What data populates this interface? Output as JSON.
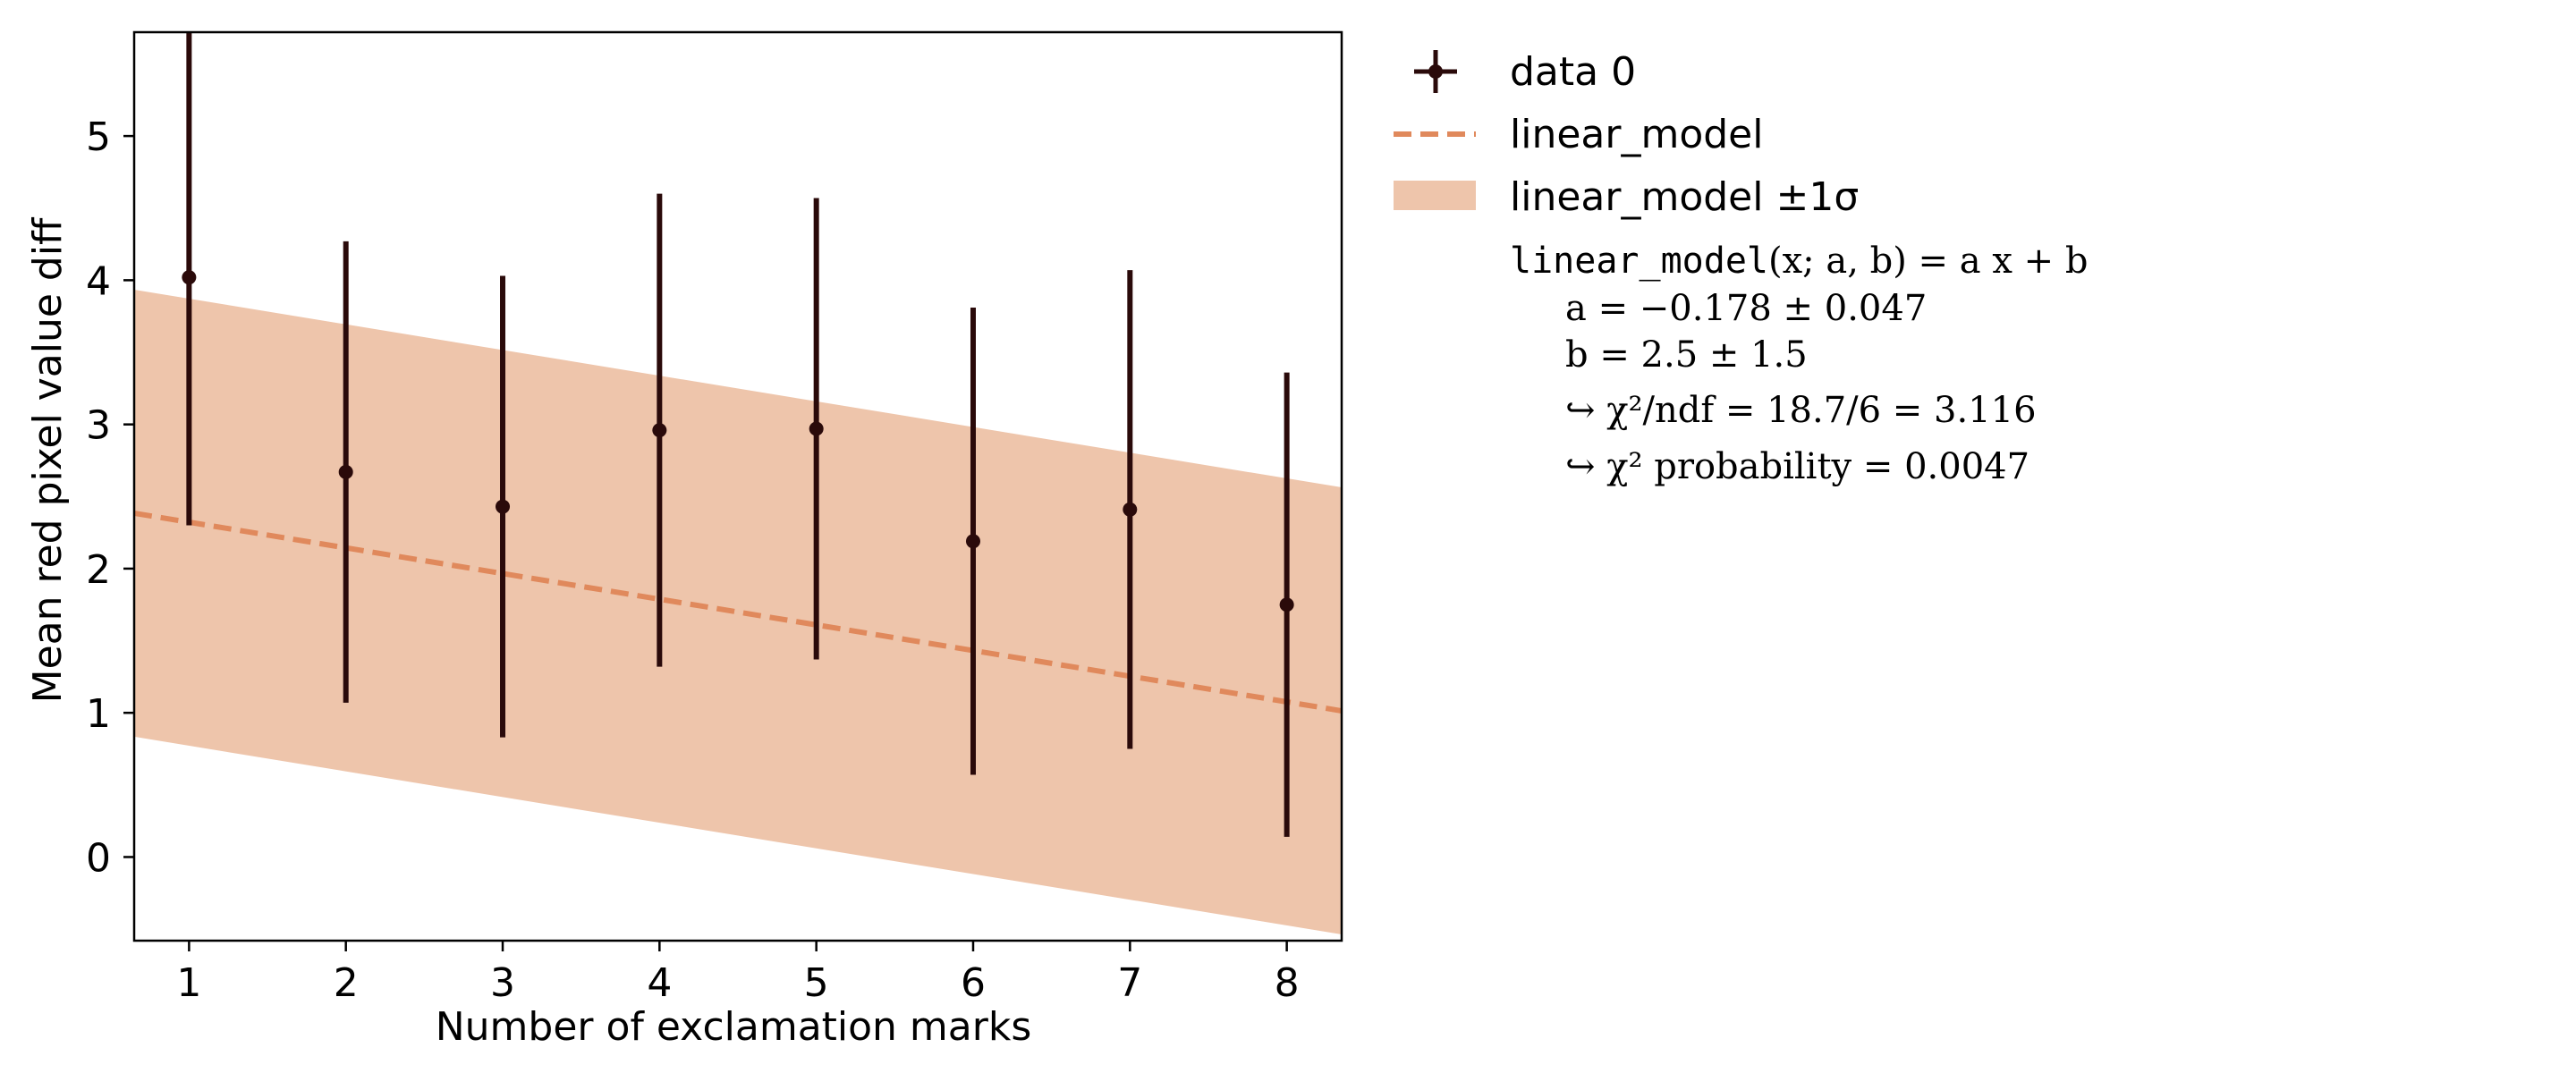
{
  "chart_data": {
    "type": "scatter",
    "xlabel": "Number of exclamation marks",
    "ylabel": "Mean red pixel value diff",
    "xlim": [
      0.65,
      8.35
    ],
    "ylim": [
      -0.58,
      5.72
    ],
    "xticks": [
      1,
      2,
      3,
      4,
      5,
      6,
      7,
      8
    ],
    "yticks": [
      0,
      1,
      2,
      3,
      4,
      5
    ],
    "grid": false,
    "legend_position": "outside right",
    "series": [
      {
        "name": "data 0",
        "kind": "errorbar",
        "color": "#2a0a0a",
        "x": [
          1,
          2,
          3,
          4,
          5,
          6,
          7,
          8
        ],
        "y": [
          4.02,
          2.67,
          2.43,
          2.96,
          2.97,
          2.19,
          2.41,
          1.75
        ],
        "yerr": [
          1.72,
          1.6,
          1.6,
          1.64,
          1.6,
          1.62,
          1.66,
          1.61
        ]
      },
      {
        "name": "linear_model",
        "kind": "line",
        "color": "#e0895c",
        "dash": true,
        "a": -0.178,
        "b": 2.5
      },
      {
        "name": "linear_model ±1σ",
        "kind": "band",
        "color": "#eec5ab",
        "band_halfwidth": 1.55
      }
    ],
    "fit_info": {
      "model": "linear_model(x; a, b) = a x + b",
      "model_name": "linear_model",
      "model_args": "(x; a, b) = a x + b",
      "param_a": "a = −0.178 ± 0.047",
      "param_b": "b = 2.5 ± 1.5",
      "chi2_ndf": "↪ χ²/ndf = 18.7/6 = 3.116",
      "chi2_prob": "↪ χ² probability = 0.0047"
    }
  }
}
